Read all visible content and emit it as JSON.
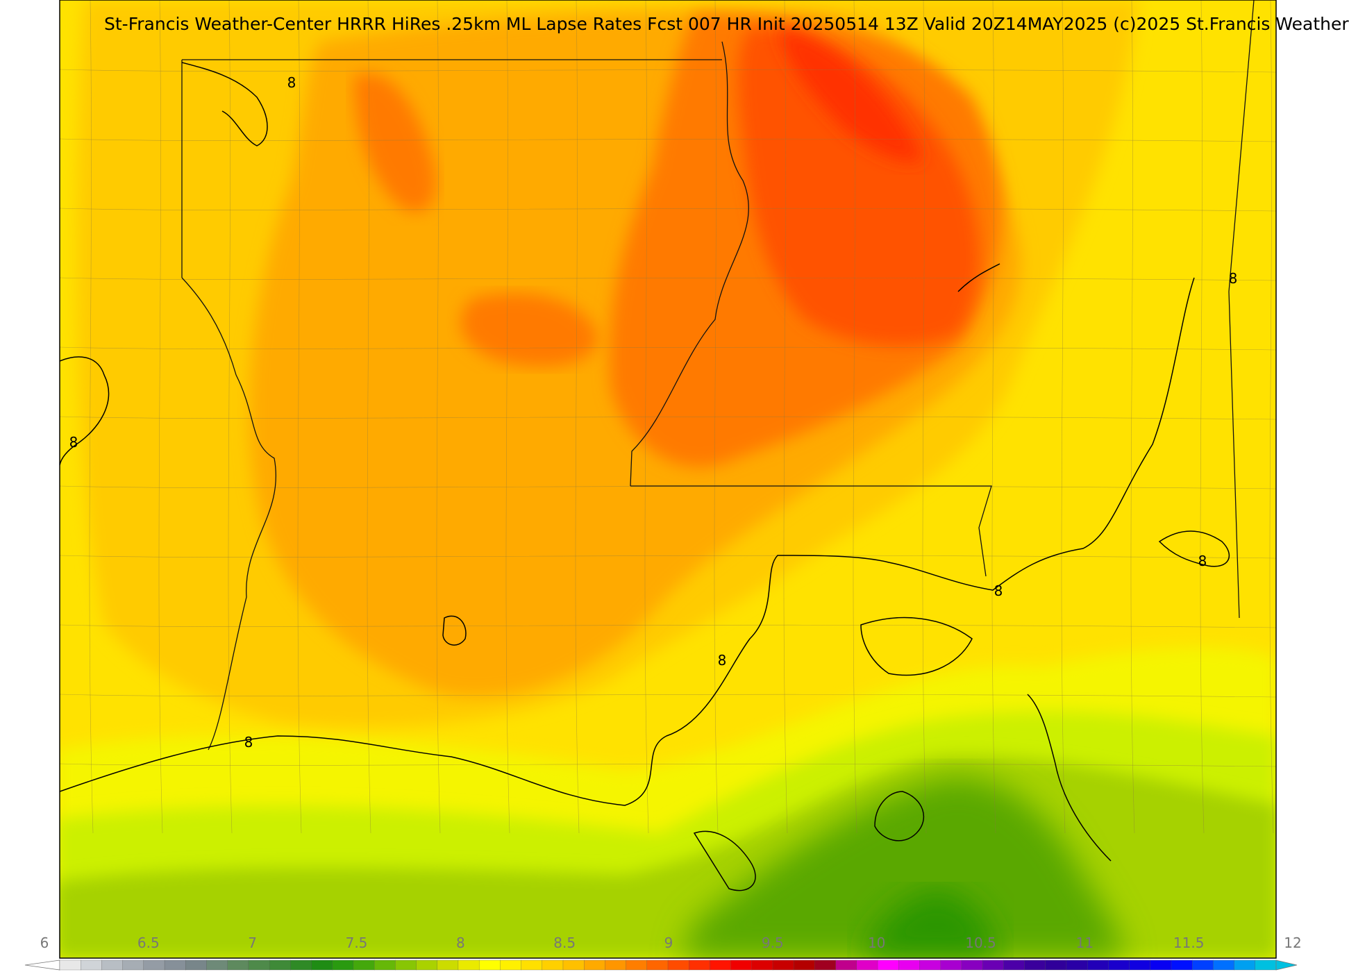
{
  "map": {
    "title": "St-Francis Weather-Center HRRR HiRes .25km ML Lapse Rates  Fcst 007 HR Init 20250514 13Z  Valid 20Z14MAY2025    (c)2025 St.Francis Weather",
    "field": "ML Lapse Rates",
    "contour_value": 8,
    "contour_label": "8",
    "colors": {
      "lt_7.5": "#a6d200",
      "7.5": "#ccf000",
      "7.75": "#f5f500",
      "8.0": "#ffe200",
      "8.25": "#ffcb00",
      "8.5": "#ffaa00",
      "8.75": "#ff7a00",
      "9.0": "#ff5200",
      "9.25": "#ff3000",
      "green_low": "#5aa800",
      "green_core": "#2a9600"
    }
  },
  "colorbar": {
    "min": 6,
    "max": 12,
    "tick_labels": [
      "6",
      "6.5",
      "7",
      "7.5",
      "8",
      "8.5",
      "9",
      "9.5",
      "10",
      "10.5",
      "11",
      "11.5",
      "12"
    ],
    "colors": [
      "#e8e8e8",
      "#d0d4d8",
      "#b8bec4",
      "#a6adb4",
      "#949ca5",
      "#869099",
      "#78868a",
      "#6e8a78",
      "#5e8a5e",
      "#4e8a4a",
      "#3f8a38",
      "#2f8a26",
      "#1f8c14",
      "#2a9a10",
      "#44a80c",
      "#66b808",
      "#88c604",
      "#aad200",
      "#ccdc00",
      "#eaea00",
      "#ffff00",
      "#fff000",
      "#ffe000",
      "#ffd000",
      "#ffc000",
      "#ffaa00",
      "#ff9600",
      "#ff7e00",
      "#ff6600",
      "#ff4c00",
      "#ff3000",
      "#ff1400",
      "#f00000",
      "#dc0000",
      "#c80000",
      "#b40000",
      "#a00020",
      "#c0008c",
      "#e000c8",
      "#ff00ff",
      "#e800f0",
      "#c800e0",
      "#a800d0",
      "#8800c0",
      "#6a00b4",
      "#4c00a8",
      "#3a009c",
      "#30009a",
      "#2a00a6",
      "#2200b8",
      "#1a00cc",
      "#1000e0",
      "#0800f2",
      "#0010ff",
      "#0040ff",
      "#0070ff",
      "#00a0f0",
      "#00c0e0"
    ]
  }
}
